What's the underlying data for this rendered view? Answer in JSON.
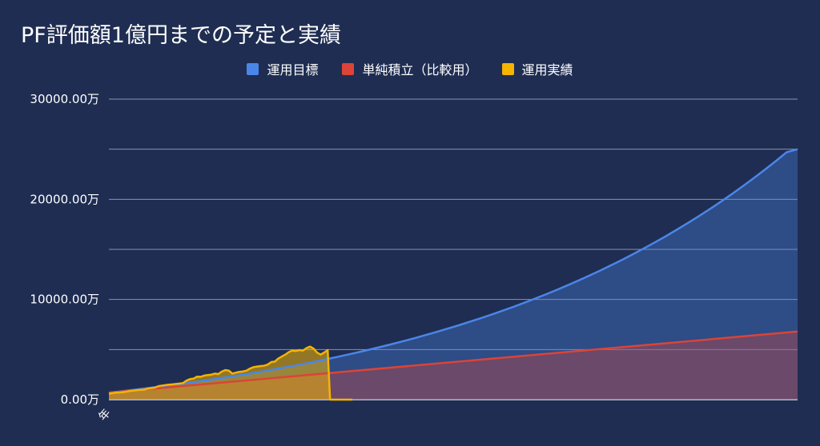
{
  "chart_data": {
    "type": "area",
    "title": "PF評価額1億円までの予定と実績",
    "xlabel": "",
    "ylabel": "",
    "ylim": [
      0,
      30000
    ],
    "yticks": [
      {
        "value": 0,
        "label": "0.00万"
      },
      {
        "value": 10000,
        "label": "10000.00万"
      },
      {
        "value": 20000,
        "label": "20000.00万"
      },
      {
        "value": 30000,
        "label": "30000.00万"
      }
    ],
    "gridlines": [
      0,
      5000,
      10000,
      15000,
      20000,
      25000,
      30000
    ],
    "xtick_labels": [
      "年"
    ],
    "x_count": 100,
    "legend_position": "top",
    "series": [
      {
        "name": "運用目標",
        "color": "#4a86e8",
        "values": [
          700,
          821,
          946,
          1075,
          1209,
          1346,
          1488,
          1635,
          1787,
          1944,
          2107,
          2274,
          2448,
          2627,
          2812,
          3003,
          3200,
          3404,
          3615,
          3833,
          4058,
          4291,
          4531,
          4780,
          5037,
          5302,
          5576,
          5859,
          6152,
          6454,
          6767,
          7090,
          7424,
          7768,
          8125,
          8493,
          8873,
          9266,
          9672,
          10092,
          10525,
          10973,
          11436,
          11914,
          12407,
          12917,
          13444,
          13988,
          14551,
          15132,
          15732,
          16352,
          16993,
          17655,
          18339,
          19045,
          19775,
          20529,
          21308,
          22114,
          22946,
          23805,
          24694,
          25000
        ]
      },
      {
        "name": "単純積立（比較用）",
        "color": "#db4437",
        "values": [
          700,
          6800
        ]
      },
      {
        "name": "運用実績",
        "color": "#f4b400",
        "values": [
          600,
          650,
          700,
          720,
          750,
          800,
          870,
          900,
          950,
          980,
          1000,
          1100,
          1150,
          1200,
          1350,
          1400,
          1450,
          1500,
          1520,
          1560,
          1600,
          1650,
          1900,
          2050,
          2100,
          2300,
          2280,
          2400,
          2450,
          2500,
          2600,
          2550,
          2800,
          2950,
          2900,
          2600,
          2700,
          2780,
          2820,
          2900,
          3100,
          3250,
          3300,
          3350,
          3380,
          3500,
          3750,
          3800,
          4100,
          4300,
          4500,
          4750,
          4900,
          4850,
          4950,
          4900,
          5150,
          5300,
          5100,
          4700,
          4500,
          4700,
          4950,
          0,
          0,
          0,
          0,
          0,
          0,
          0
        ]
      }
    ]
  }
}
